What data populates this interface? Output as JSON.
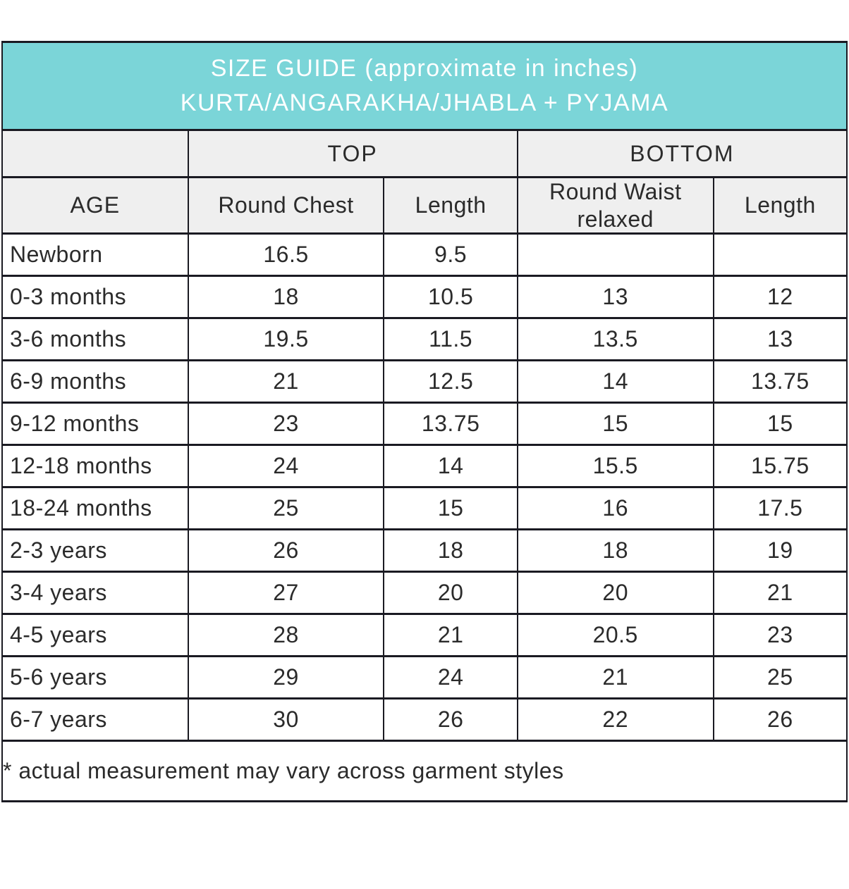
{
  "chart_data": {
    "type": "table",
    "title": "SIZE GUIDE (approximate in inches)",
    "subtitle": "KURTA/ANGARAKHA/JHABLA + PYJAMA",
    "group_headers": {
      "top": "TOP",
      "bottom": "BOTTOM"
    },
    "column_headers": [
      "AGE",
      "Round Chest",
      "Length",
      "Round Waist relaxed",
      "Length"
    ],
    "rows": [
      {
        "age": "Newborn",
        "values": [
          "16.5",
          "9.5",
          "",
          ""
        ]
      },
      {
        "age": "0-3 months",
        "values": [
          "18",
          "10.5",
          "13",
          "12"
        ]
      },
      {
        "age": "3-6 months",
        "values": [
          "19.5",
          "11.5",
          "13.5",
          "13"
        ]
      },
      {
        "age": "6-9 months",
        "values": [
          "21",
          "12.5",
          "14",
          "13.75"
        ]
      },
      {
        "age": "9-12 months",
        "values": [
          "23",
          "13.75",
          "15",
          "15"
        ]
      },
      {
        "age": "12-18 months",
        "values": [
          "24",
          "14",
          "15.5",
          "15.75"
        ]
      },
      {
        "age": "18-24 months",
        "values": [
          "25",
          "15",
          "16",
          "17.5"
        ]
      },
      {
        "age": "2-3 years",
        "values": [
          "26",
          "18",
          "18",
          "19"
        ]
      },
      {
        "age": "3-4 years",
        "values": [
          "27",
          "20",
          "20",
          "21"
        ]
      },
      {
        "age": "4-5 years",
        "values": [
          "28",
          "21",
          "20.5",
          "23"
        ]
      },
      {
        "age": "5-6 years",
        "values": [
          "29",
          "24",
          "21",
          "25"
        ]
      },
      {
        "age": "6-7 years",
        "values": [
          "30",
          "26",
          "22",
          "26"
        ]
      }
    ],
    "footnote": "* actual measurement may vary across garment styles",
    "layout": {
      "grid": "on",
      "column_width_percents": [
        22,
        23.2,
        15.8,
        23.2,
        15.8
      ]
    }
  },
  "colors": {
    "header_bg": "#7bd5d8",
    "header_text": "#ffffff",
    "subheader_bg": "#efefef",
    "border": "#1a1a22",
    "text": "#2b2b2b",
    "row_bg": "#ffffff"
  }
}
